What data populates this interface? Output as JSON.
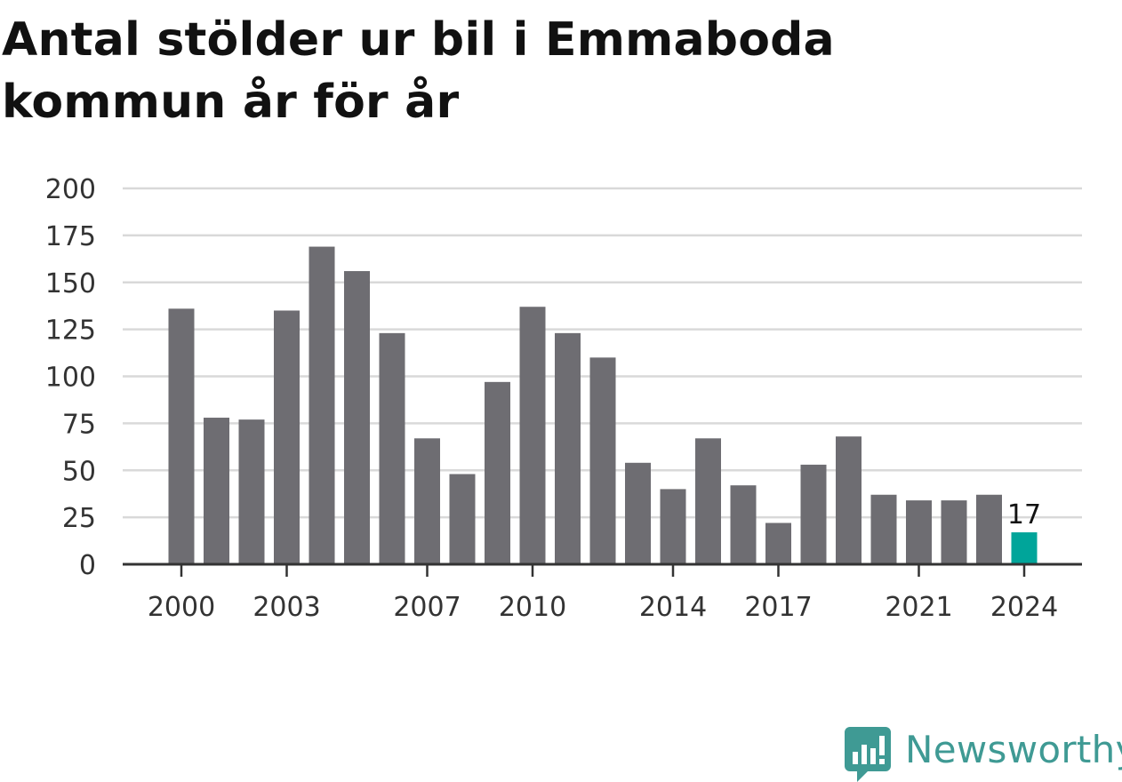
{
  "title": "Antal stölder ur bil i Emmaboda kommun år för år",
  "logo": {
    "text": "Newsworthy",
    "color": "#3f9a94",
    "icon": "newsworthy-logo-icon"
  },
  "colors": {
    "bar": "#6e6d72",
    "highlight": "#00a59a",
    "grid": "#d9d9d9",
    "axis": "#333333",
    "text": "#333333"
  },
  "chart_data": {
    "type": "bar",
    "categories": [
      "2000",
      "2001",
      "2002",
      "2003",
      "2004",
      "2005",
      "2006",
      "2007",
      "2008",
      "2009",
      "2010",
      "2011",
      "2012",
      "2013",
      "2014",
      "2015",
      "2016",
      "2017",
      "2018",
      "2019",
      "2020",
      "2021",
      "2022",
      "2023",
      "2024"
    ],
    "values": [
      136,
      78,
      77,
      135,
      169,
      156,
      123,
      67,
      48,
      97,
      137,
      123,
      110,
      54,
      40,
      67,
      42,
      22,
      53,
      68,
      37,
      34,
      34,
      37,
      17
    ],
    "highlight_index": 24,
    "highlight_label": "17",
    "ylim": [
      0,
      200
    ],
    "yticks": [
      0,
      25,
      50,
      75,
      100,
      125,
      150,
      175,
      200
    ],
    "xtick_labels": [
      "2000",
      "2003",
      "2007",
      "2010",
      "2014",
      "2017",
      "2021",
      "2024"
    ],
    "grid": true,
    "legend": "none",
    "xlabel": "",
    "ylabel": ""
  }
}
